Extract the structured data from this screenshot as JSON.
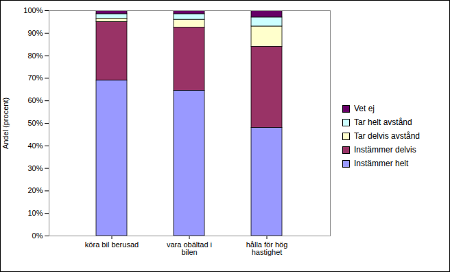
{
  "chart_data": {
    "type": "bar",
    "stacked": true,
    "ylabel": "Andel (procent)",
    "categories": [
      "köra bil berusad",
      "vara obältad i bilen",
      "hålla för hög hastighet"
    ],
    "series": [
      {
        "name": "Instämmer helt",
        "color": "#9999ff",
        "values": [
          69,
          64.5,
          48
        ]
      },
      {
        "name": "Instämmer delvis",
        "color": "#993366",
        "values": [
          26,
          28,
          36
        ]
      },
      {
        "name": "Tar delvis avstånd",
        "color": "#ffffcc",
        "values": [
          1.5,
          3.5,
          9
        ]
      },
      {
        "name": "Tar helt avstånd",
        "color": "#ccffff",
        "values": [
          2,
          2.5,
          4
        ]
      },
      {
        "name": "Vet ej",
        "color": "#660066",
        "values": [
          1.5,
          1.5,
          3
        ]
      }
    ],
    "ylim": [
      0,
      100
    ],
    "yticks": [
      {
        "value": 0,
        "label": "0%"
      },
      {
        "value": 10,
        "label": "10%"
      },
      {
        "value": 20,
        "label": "20%"
      },
      {
        "value": 30,
        "label": "30%"
      },
      {
        "value": 40,
        "label": "40%"
      },
      {
        "value": 50,
        "label": "50%"
      },
      {
        "value": 60,
        "label": "60%"
      },
      {
        "value": 70,
        "label": "70%"
      },
      {
        "value": 80,
        "label": "80%"
      },
      {
        "value": 90,
        "label": "90%"
      },
      {
        "value": 100,
        "label": "100%"
      }
    ],
    "grid": false,
    "legend": "right"
  }
}
